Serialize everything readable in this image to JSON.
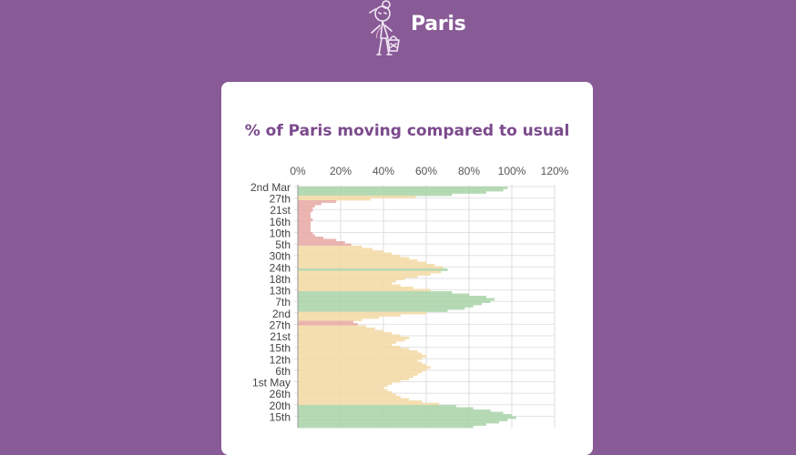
{
  "header": {
    "city": "Paris",
    "mascot_icon": "walking-woman-with-basket-icon"
  },
  "colors": {
    "background": "#885a96",
    "card": "#ffffff",
    "title": "#7b4a8c",
    "low": "#e8a9a4",
    "mid": "#f3d9a4",
    "high": "#a9d4a8"
  },
  "chart_data": {
    "type": "bar",
    "orientation": "horizontal",
    "title": "% of Paris moving compared to usual",
    "xlabel": "",
    "ylabel": "",
    "xlim": [
      0,
      120
    ],
    "x_ticks": [
      "0%",
      "20%",
      "40%",
      "60%",
      "80%",
      "100%",
      "120%"
    ],
    "y_tick_labels": [
      "2nd Mar",
      "27th",
      "21st",
      "16th",
      "10th",
      "5th",
      "30th",
      "24th",
      "18th",
      "13th",
      "7th",
      "2nd",
      "27th",
      "21st",
      "15th",
      "12th",
      "6th",
      "1st May",
      "26th",
      "20th",
      "15th"
    ],
    "grid": true,
    "legend": "none",
    "values": [
      98,
      96,
      88,
      72,
      55,
      34,
      18,
      11,
      8,
      7,
      7,
      6,
      6,
      6,
      7,
      6,
      6,
      6,
      6,
      6,
      7,
      8,
      12,
      18,
      22,
      25,
      30,
      35,
      40,
      44,
      48,
      52,
      56,
      60,
      64,
      68,
      70,
      67,
      62,
      56,
      50,
      46,
      44,
      48,
      54,
      62,
      72,
      80,
      88,
      92,
      90,
      86,
      82,
      78,
      70,
      60,
      48,
      38,
      30,
      26,
      28,
      32,
      36,
      40,
      44,
      48,
      52,
      50,
      46,
      44,
      48,
      52,
      56,
      58,
      60,
      58,
      56,
      58,
      60,
      62,
      60,
      58,
      56,
      54,
      52,
      48,
      44,
      42,
      40,
      42,
      44,
      46,
      48,
      52,
      58,
      66,
      74,
      82,
      90,
      96,
      100,
      102,
      98,
      94,
      88,
      82
    ]
  }
}
